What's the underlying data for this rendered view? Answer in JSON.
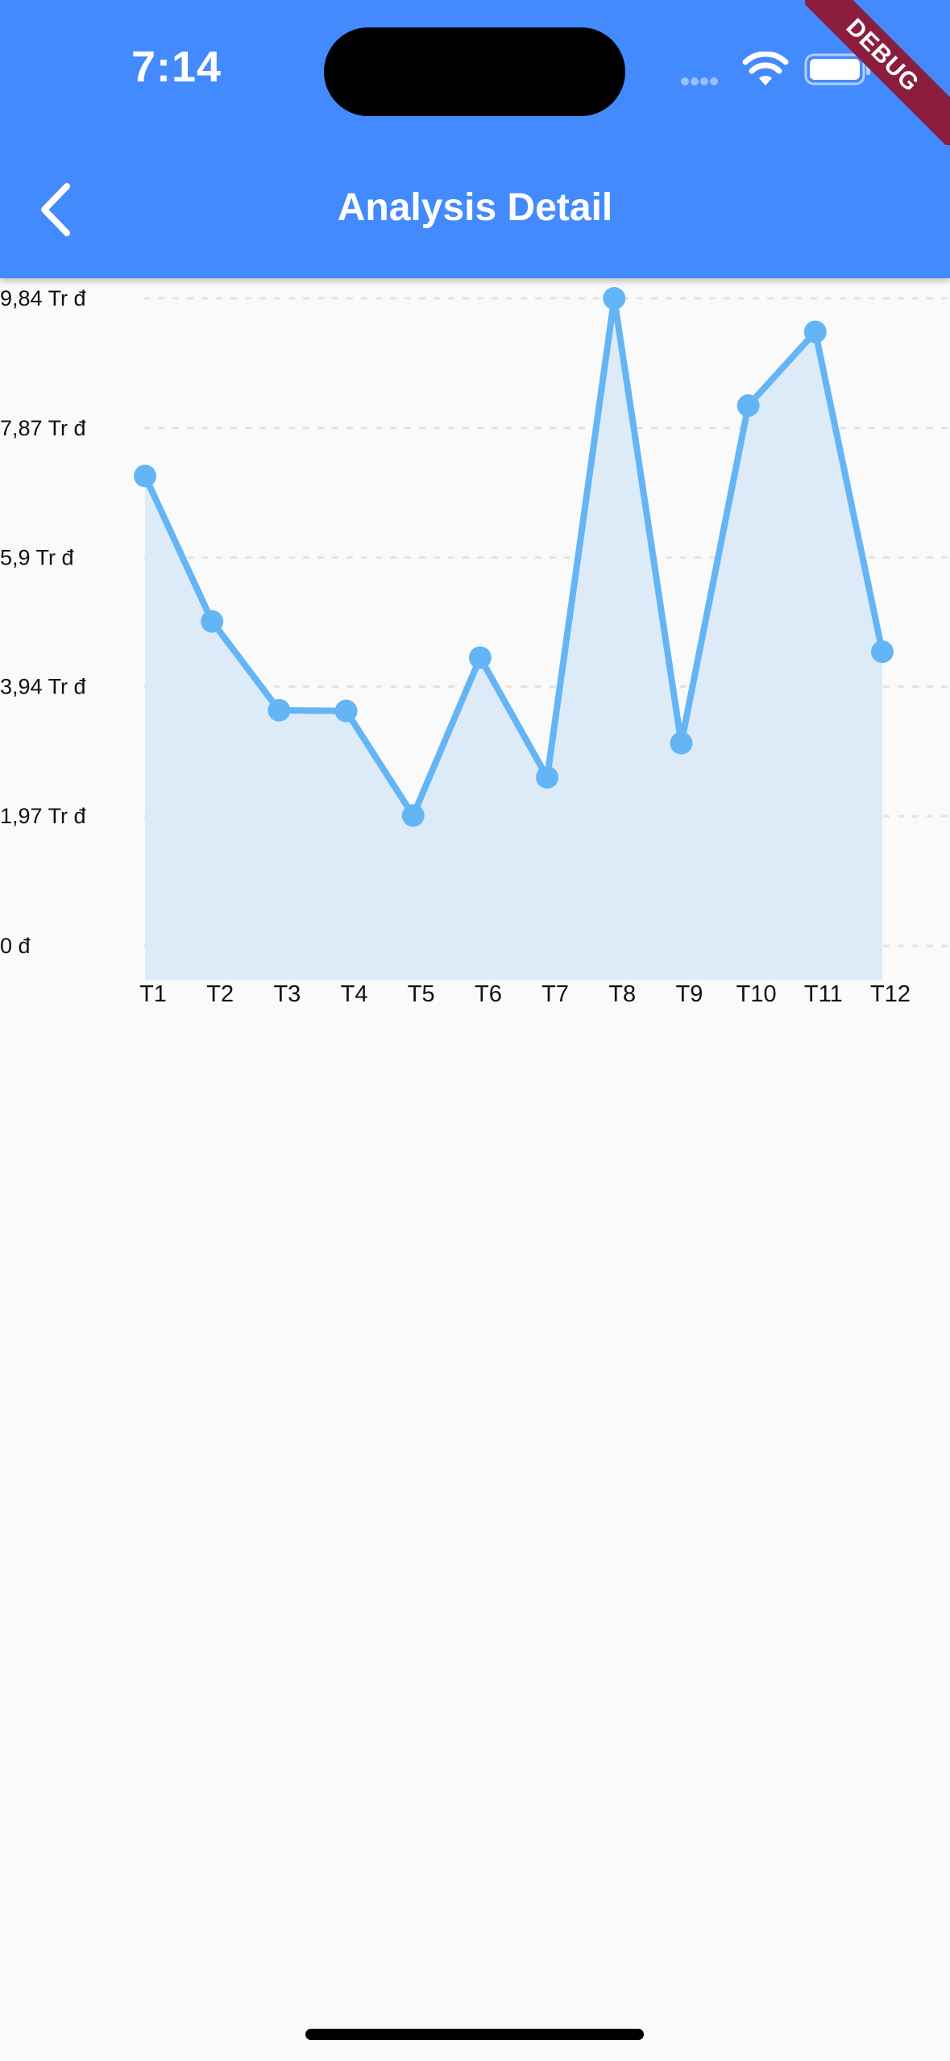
{
  "status_bar": {
    "time": "7:14",
    "icons": [
      "cellular-signal-icon",
      "wifi-icon",
      "battery-icon"
    ]
  },
  "app_bar": {
    "title": "Analysis Detail",
    "back_icon": "chevron-left-icon",
    "color": "#448AFF"
  },
  "debug_banner": "DEBUG",
  "chart_data": {
    "type": "area",
    "categories": [
      "T1",
      "T2",
      "T3",
      "T4",
      "T5",
      "T6",
      "T7",
      "T8",
      "T9",
      "T10",
      "T11",
      "T12"
    ],
    "series": [
      {
        "values": [
          7.14,
          4.93,
          3.58,
          3.57,
          1.98,
          4.38,
          2.56,
          9.84,
          3.08,
          8.21,
          9.33,
          4.47
        ]
      }
    ],
    "y_ticks": [
      "0 đ",
      "1,97 Tr đ",
      "3,94 Tr đ",
      "5,9 Tr đ",
      "7,87 Tr đ",
      "9,84 Tr đ"
    ],
    "y_tick_values": [
      0,
      1.97,
      3.94,
      5.9,
      7.87,
      9.84
    ],
    "ylim": [
      0,
      9.84
    ],
    "unit": "Tr đ",
    "grid": "horizontal dashed",
    "line_color": "#64B5F6",
    "fill_color": "#DDEBF8",
    "grid_color": "#E3E3E3"
  }
}
